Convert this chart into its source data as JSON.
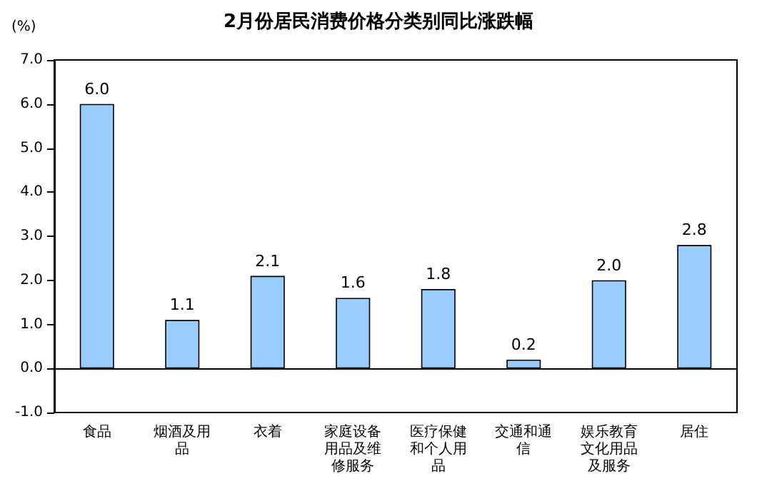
{
  "chart_data": {
    "type": "bar",
    "title": "2月份居民消费价格分类别同比涨跌幅",
    "ylabel": "(%)",
    "categories": [
      "食品",
      "烟酒及用品",
      "衣着",
      "家庭设备用品及维修服务",
      "医疗保健和个人用品",
      "交通和通信",
      "娱乐教育文化用品及服务",
      "居住"
    ],
    "values": [
      6.0,
      1.1,
      2.1,
      1.6,
      1.8,
      0.2,
      2.0,
      2.8
    ],
    "value_labels": [
      "6.0",
      "1.1",
      "2.1",
      "1.6",
      "1.8",
      "0.2",
      "2.0",
      "2.8"
    ],
    "color": "#99ccff",
    "ylim": [
      -1,
      7
    ],
    "yticks": [
      {
        "value": -1,
        "label": "-1.0"
      },
      {
        "value": 0,
        "label": "0.0"
      },
      {
        "value": 1,
        "label": "1.0"
      },
      {
        "value": 2,
        "label": "2.0"
      },
      {
        "value": 3,
        "label": "3.0"
      },
      {
        "value": 4,
        "label": "4.0"
      },
      {
        "value": 5,
        "label": "5.0"
      },
      {
        "value": 6,
        "label": "6.0"
      },
      {
        "value": 7,
        "label": "7.0"
      }
    ]
  }
}
